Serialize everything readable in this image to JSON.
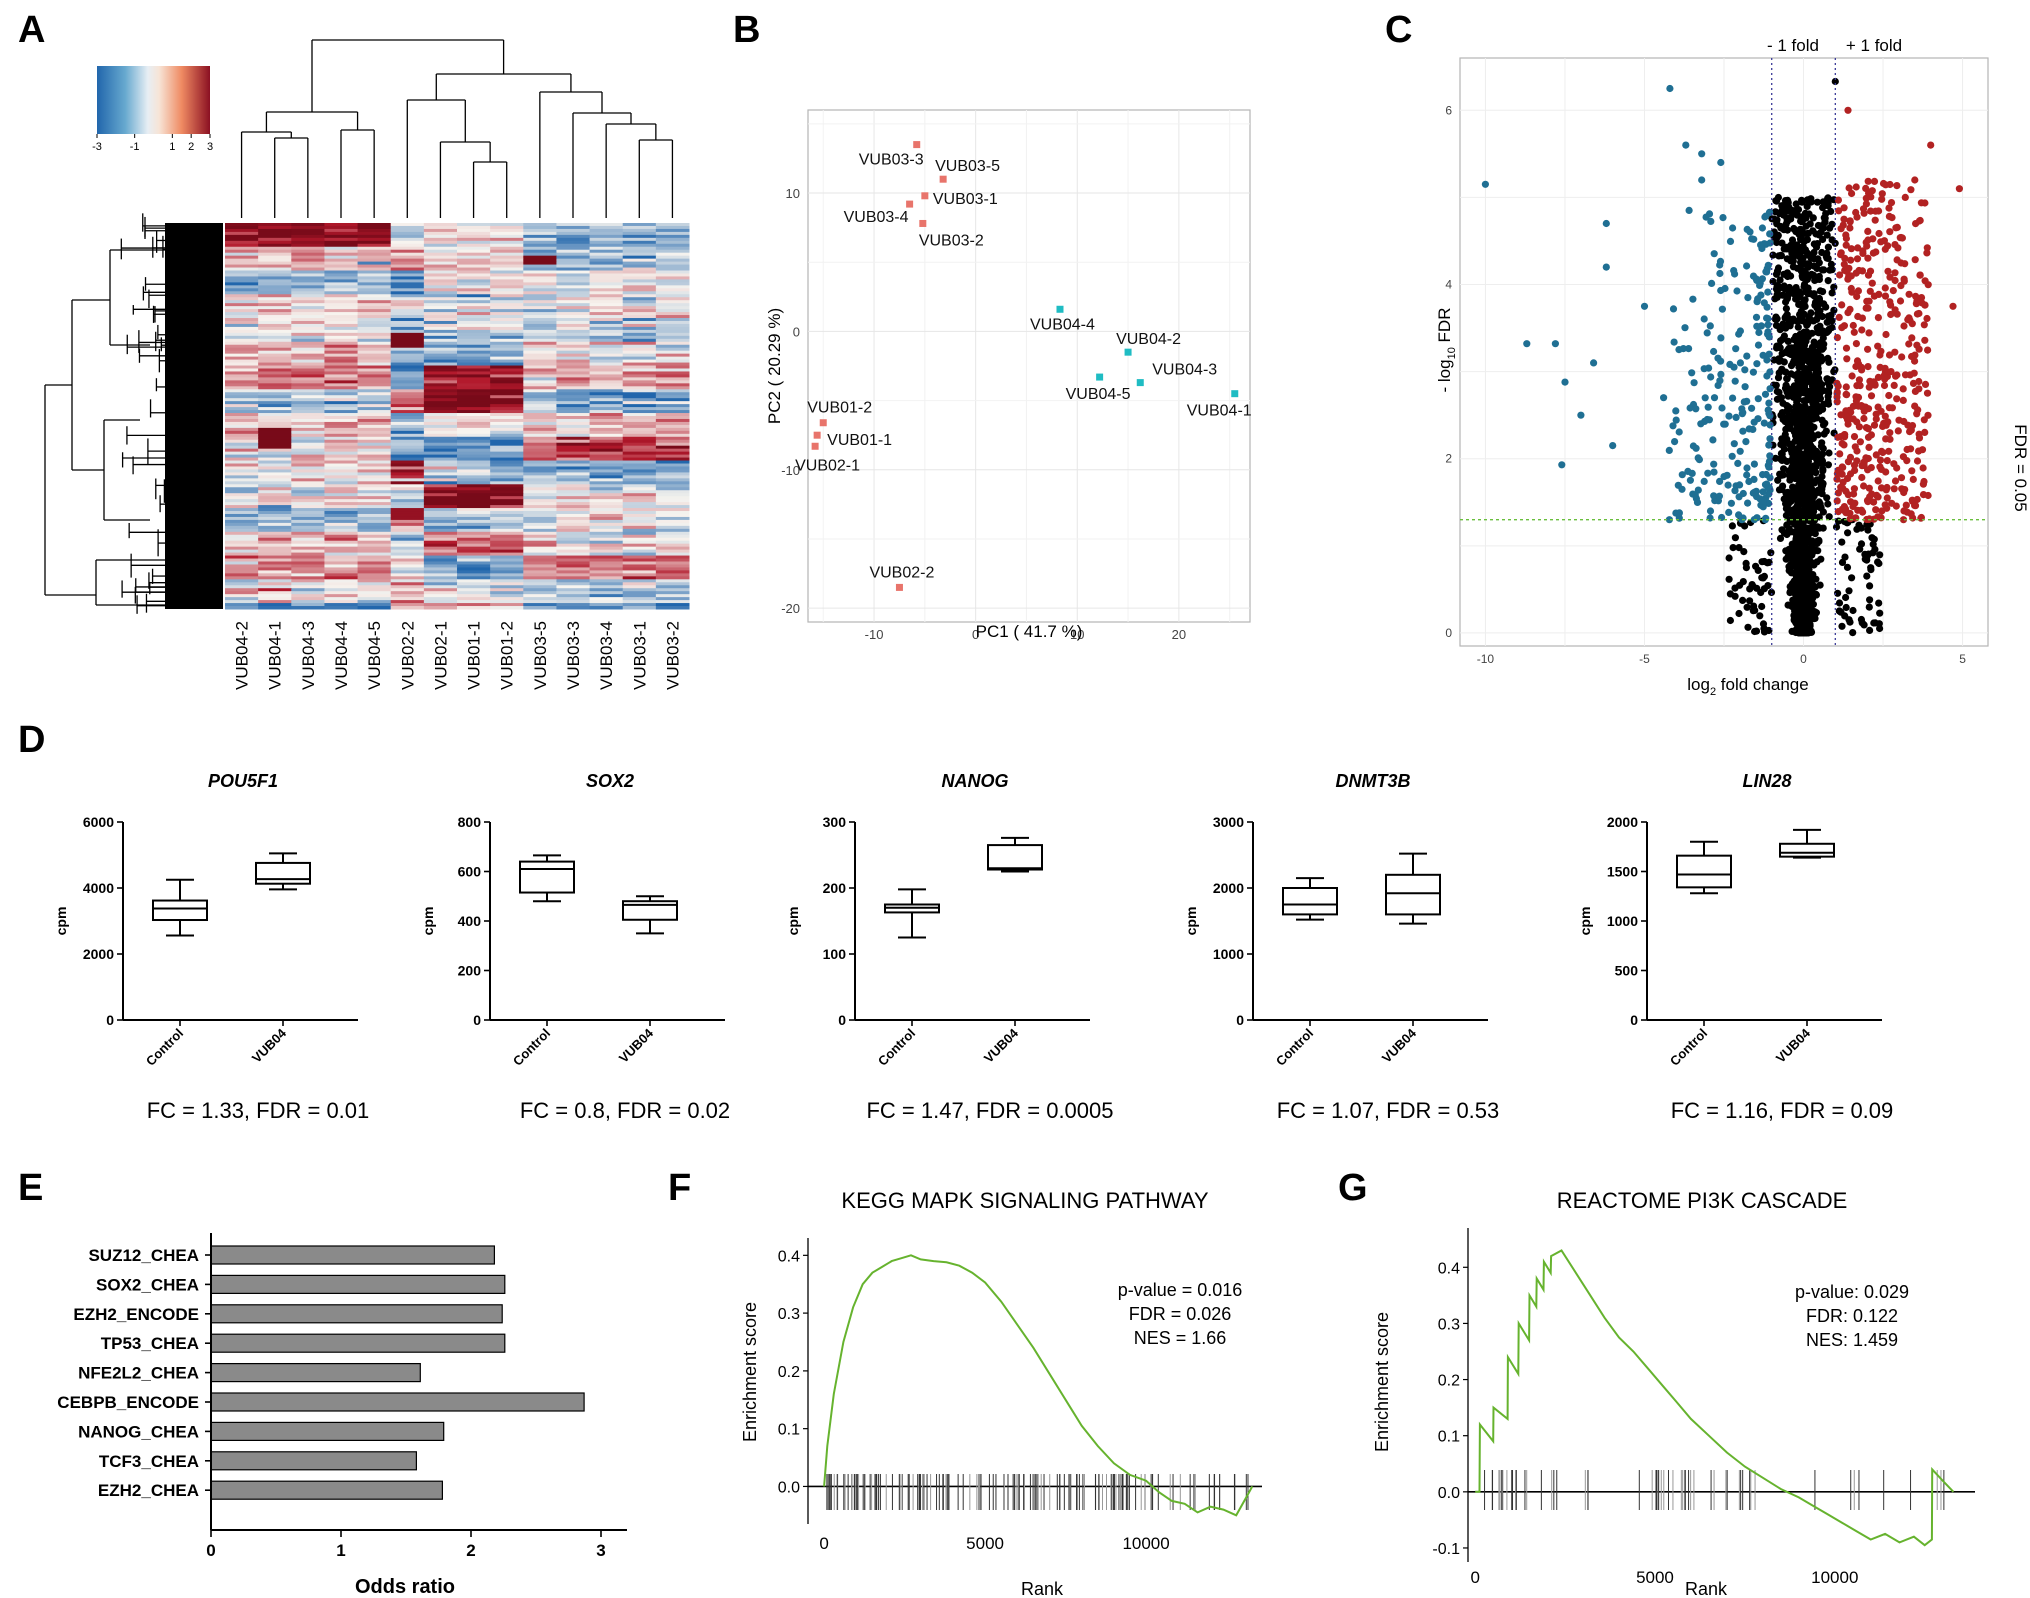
{
  "colors": {
    "red": "#e8746b",
    "teal": "#1fbcc3",
    "volcano_red": "#b22222",
    "volcano_blue": "#1f6f93",
    "black": "#000000",
    "green": "#66b32e",
    "bar": "#8a8a8a",
    "grid": "#ebebeb",
    "heat_low": "#2166ac",
    "heat_mid": "#f7f4ef",
    "heat_high": "#b2182b",
    "fold_line": "#3b3b98",
    "fdr_line": "#6abf3d"
  },
  "panel_labels": [
    "A",
    "B",
    "C",
    "D",
    "E",
    "F",
    "G"
  ],
  "chart_data": [
    {
      "type": "heatmap",
      "panel": "A",
      "colorbar": {
        "ticks": [
          "-3",
          "-1",
          "1",
          "2",
          "3"
        ],
        "range": [
          -3,
          3
        ]
      },
      "columns": [
        "VUB04-2",
        "VUB04-1",
        "VUB04-3",
        "VUB04-4",
        "VUB04-5",
        "VUB02-2",
        "VUB02-1",
        "VUB01-1",
        "VUB01-2",
        "VUB03-5",
        "VUB03-3",
        "VUB03-4",
        "VUB03-1",
        "VUB03-2"
      ],
      "row_count": 130
    },
    {
      "type": "scatter",
      "panel": "B",
      "xlabel": "PC1 ( 41.7 %)",
      "ylabel": "PC2 ( 20.29 %)",
      "xlim": [
        -16.5,
        27
      ],
      "ylim": [
        -21,
        16
      ],
      "xticks": [
        -10,
        0,
        10,
        20
      ],
      "yticks": [
        -20,
        -10,
        0,
        10
      ],
      "points": [
        {
          "label": "VUB03-3",
          "x": -5.8,
          "y": 13.5,
          "group": "red"
        },
        {
          "label": "VUB03-5",
          "x": -3.2,
          "y": 11.0,
          "group": "red"
        },
        {
          "label": "VUB03-1",
          "x": -5.0,
          "y": 9.8,
          "group": "red"
        },
        {
          "label": "VUB03-4",
          "x": -6.5,
          "y": 9.2,
          "group": "red"
        },
        {
          "label": "VUB03-2",
          "x": -5.2,
          "y": 7.8,
          "group": "red"
        },
        {
          "label": "VUB04-4",
          "x": 8.3,
          "y": 1.6,
          "group": "teal"
        },
        {
          "label": "VUB04-2",
          "x": 15.0,
          "y": -1.5,
          "group": "teal"
        },
        {
          "label": "VUB04-3",
          "x": 16.2,
          "y": -3.7,
          "group": "teal"
        },
        {
          "label": "VUB04-5",
          "x": 12.2,
          "y": -3.3,
          "group": "teal"
        },
        {
          "label": "VUB04-1",
          "x": 25.5,
          "y": -4.5,
          "group": "teal"
        },
        {
          "label": "VUB01-2",
          "x": -15.0,
          "y": -6.6,
          "group": "red"
        },
        {
          "label": "VUB01-1",
          "x": -15.6,
          "y": -7.5,
          "group": "red"
        },
        {
          "label": "VUB02-1",
          "x": -15.8,
          "y": -8.3,
          "group": "red"
        },
        {
          "label": "VUB02-2",
          "x": -7.5,
          "y": -18.5,
          "group": "red"
        }
      ]
    },
    {
      "type": "scatter",
      "panel": "C",
      "xlabel_prefix": "log",
      "xlabel_sub": "2",
      "xlabel_rest": " fold change",
      "ylabel_prefix": "- log",
      "ylabel_sub": "10",
      "ylabel_rest": " FDR",
      "xlim": [
        -10.8,
        5.8
      ],
      "ylim": [
        -0.15,
        6.6
      ],
      "xticks": [
        -10,
        -5,
        0,
        5
      ],
      "yticks": [
        0,
        2,
        4,
        6
      ],
      "annotations": {
        "minus_fold": "- 1 fold",
        "plus_fold": "+ 1 fold",
        "fdr": "FDR = 0.05"
      },
      "thresholds": {
        "fold": 1,
        "fdr_y": 1.3
      },
      "points_description": "volcano"
    },
    {
      "type": "box",
      "panel": "D",
      "ylabel": "cpm",
      "categories": [
        "Control",
        "VUB04"
      ],
      "genes": [
        {
          "name": "POU5F1",
          "ymax": 6000,
          "yticks": [
            0,
            2000,
            4000,
            6000
          ],
          "boxes": [
            {
              "min": 2560,
              "q1": 3030,
              "med": 3380,
              "q3": 3620,
              "max": 4250
            },
            {
              "min": 3960,
              "q1": 4130,
              "med": 4270,
              "q3": 4760,
              "max": 5050
            }
          ],
          "caption": "FC = 1.33, FDR = 0.01"
        },
        {
          "name": "SOX2",
          "ymax": 800,
          "yticks": [
            0,
            200,
            400,
            600,
            800
          ],
          "boxes": [
            {
              "min": 480,
              "q1": 515,
              "med": 610,
              "q3": 640,
              "max": 665
            },
            {
              "min": 350,
              "q1": 405,
              "med": 465,
              "q3": 480,
              "max": 500
            }
          ],
          "caption": "FC = 0.8, FDR = 0.02"
        },
        {
          "name": "NANOG",
          "ymax": 300,
          "yticks": [
            0,
            100,
            200,
            300
          ],
          "boxes": [
            {
              "min": 125,
              "q1": 163,
              "med": 170,
              "q3": 175,
              "max": 198
            },
            {
              "min": 225,
              "q1": 228,
              "med": 230,
              "q3": 265,
              "max": 276
            }
          ],
          "caption": "FC = 1.47, FDR = 0.0005"
        },
        {
          "name": "DNMT3B",
          "ymax": 3000,
          "yticks": [
            0,
            1000,
            2000,
            3000
          ],
          "boxes": [
            {
              "min": 1520,
              "q1": 1600,
              "med": 1750,
              "q3": 2000,
              "max": 2150
            },
            {
              "min": 1460,
              "q1": 1600,
              "med": 1920,
              "q3": 2200,
              "max": 2520
            }
          ],
          "caption": "FC = 1.07, FDR = 0.53"
        },
        {
          "name": "LIN28",
          "ymax": 2000,
          "yticks": [
            0,
            500,
            1000,
            1500,
            2000
          ],
          "boxes": [
            {
              "min": 1280,
              "q1": 1340,
              "med": 1470,
              "q3": 1660,
              "max": 1800
            },
            {
              "min": 1640,
              "q1": 1650,
              "med": 1690,
              "q3": 1780,
              "max": 1920
            }
          ],
          "caption": "FC = 1.16, FDR = 0.09"
        }
      ]
    },
    {
      "type": "bar",
      "panel": "E",
      "orientation": "horizontal",
      "categories": [
        "SUZ12_CHEA",
        "SOX2_CHEA",
        "EZH2_ENCODE",
        "TP53_CHEA",
        "NFE2L2_CHEA",
        "CEBPB_ENCODE",
        "NANOG_CHEA",
        "TCF3_CHEA",
        "EZH2_CHEA"
      ],
      "values": [
        2.18,
        2.26,
        2.24,
        2.26,
        1.61,
        2.87,
        1.79,
        1.58,
        1.78
      ],
      "xlabel": "Odds ratio",
      "xlim": [
        0,
        3.2
      ],
      "xticks": [
        0,
        1,
        2,
        3
      ]
    },
    {
      "type": "line",
      "panel": "F",
      "title": "KEGG MAPK SIGNALING PATHWAY",
      "xlabel": "Rank",
      "ylabel": "Enrichment score",
      "xlim": [
        -500,
        13600
      ],
      "ylim": [
        -0.065,
        0.43
      ],
      "xticks": [
        0,
        5000,
        10000
      ],
      "yticks": [
        0.0,
        0.1,
        0.2,
        0.3,
        0.4
      ],
      "ytick_labels": [
        "0.0",
        "0.1",
        "0.2",
        "0.3",
        "0.4"
      ],
      "stats": [
        "p-value = 0.016",
        "FDR = 0.026",
        "NES = 1.66"
      ],
      "x": [
        0,
        100,
        300,
        600,
        900,
        1200,
        1500,
        1800,
        2100,
        2400,
        2700,
        3000,
        3400,
        3800,
        4200,
        4600,
        5000,
        5500,
        6000,
        6500,
        7000,
        7500,
        8000,
        8500,
        9000,
        9500,
        10000,
        10400,
        10800,
        11200,
        11600,
        12000,
        12400,
        12800,
        13100,
        13300
      ],
      "values": [
        0.0,
        0.07,
        0.16,
        0.25,
        0.31,
        0.35,
        0.37,
        0.38,
        0.39,
        0.395,
        0.4,
        0.393,
        0.39,
        0.388,
        0.382,
        0.37,
        0.353,
        0.32,
        0.28,
        0.24,
        0.195,
        0.15,
        0.105,
        0.07,
        0.04,
        0.02,
        0.01,
        -0.01,
        -0.025,
        -0.03,
        -0.045,
        -0.035,
        -0.04,
        -0.05,
        -0.02,
        0.0
      ],
      "hit_count": 150
    },
    {
      "type": "line",
      "panel": "G",
      "title": "REACTOME PI3K CASCADE",
      "xlabel": "Rank",
      "ylabel": "Enrichment score",
      "xlim": [
        -200,
        13900
      ],
      "ylim": [
        -0.125,
        0.47
      ],
      "xticks": [
        0,
        5000,
        10000
      ],
      "yticks": [
        -0.1,
        0.0,
        0.1,
        0.2,
        0.3,
        0.4
      ],
      "ytick_labels": [
        "-0.1",
        "0.0",
        "0.1",
        "0.2",
        "0.3",
        "0.4"
      ],
      "stats": [
        "p-value: 0.029",
        "FDR: 0.122",
        "NES: 1.459"
      ],
      "x": [
        0,
        120,
        130,
        500,
        510,
        900,
        910,
        1200,
        1210,
        1500,
        1510,
        1700,
        1710,
        1900,
        1910,
        2100,
        2110,
        2400,
        2800,
        3200,
        3600,
        4000,
        4400,
        4800,
        5200,
        5600,
        6000,
        6500,
        7000,
        7500,
        8000,
        8500,
        9000,
        9400,
        9800,
        10200,
        10600,
        11000,
        11400,
        11800,
        12200,
        12500,
        12700,
        12710,
        13000,
        13300
      ],
      "values": [
        0.0,
        0.0,
        0.12,
        0.09,
        0.15,
        0.13,
        0.24,
        0.21,
        0.3,
        0.27,
        0.35,
        0.33,
        0.38,
        0.36,
        0.41,
        0.39,
        0.42,
        0.43,
        0.39,
        0.35,
        0.31,
        0.275,
        0.25,
        0.22,
        0.19,
        0.16,
        0.13,
        0.1,
        0.07,
        0.045,
        0.025,
        0.005,
        -0.01,
        -0.025,
        -0.04,
        -0.055,
        -0.07,
        -0.085,
        -0.075,
        -0.09,
        -0.08,
        -0.095,
        -0.085,
        0.04,
        0.02,
        0.0
      ],
      "hit_count": 60
    }
  ]
}
